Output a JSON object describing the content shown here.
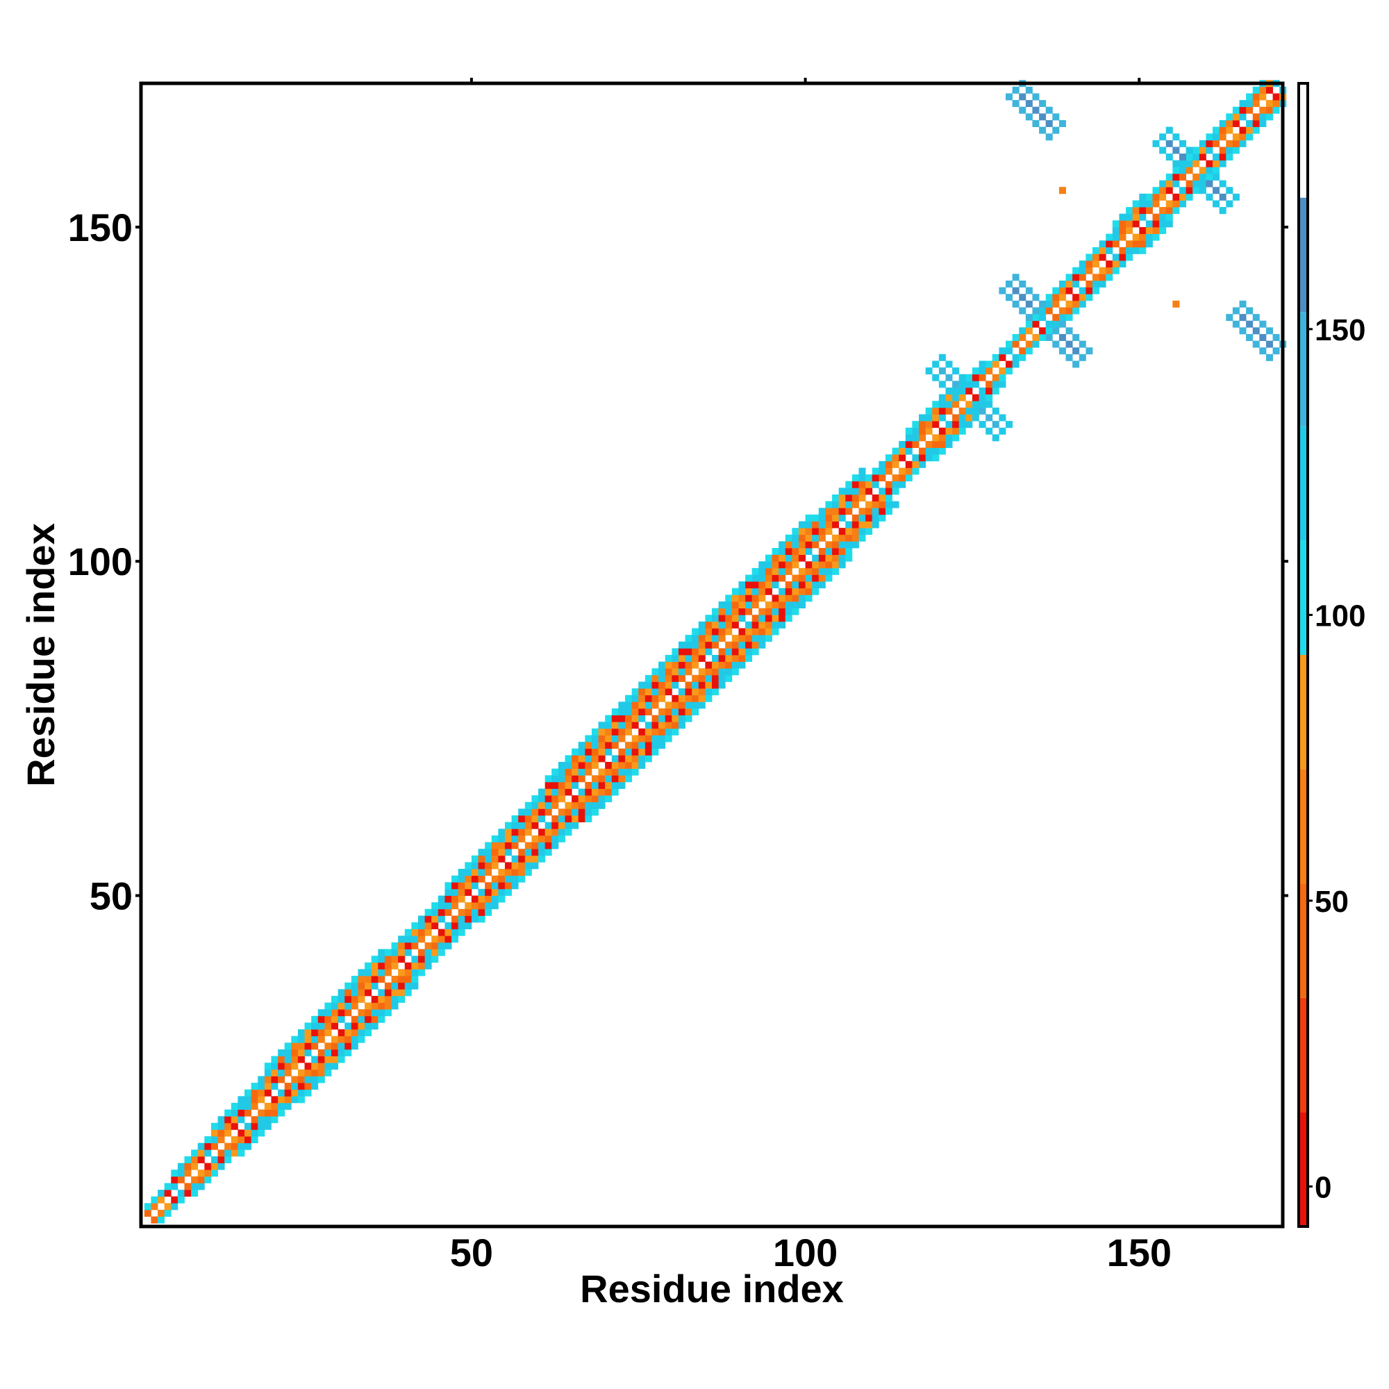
{
  "chart_data": {
    "type": "heatmap",
    "title": "",
    "xlabel": "Residue index",
    "ylabel": "Residue index",
    "n_residues": 171,
    "xlim": [
      1,
      171
    ],
    "ylim": [
      1,
      171
    ],
    "x_ticks": [
      {
        "value": 50,
        "label": "50"
      },
      {
        "value": 100,
        "label": "100"
      },
      {
        "value": 150,
        "label": "150"
      }
    ],
    "y_ticks": [
      {
        "value": 50,
        "label": "50"
      },
      {
        "value": 100,
        "label": "100"
      },
      {
        "value": 150,
        "label": "150"
      }
    ],
    "colorbar": {
      "range": [
        -7,
        193
      ],
      "ticks": [
        {
          "value": 0,
          "label": "0"
        },
        {
          "value": 50,
          "label": "50"
        },
        {
          "value": 100,
          "label": "100"
        },
        {
          "value": 150,
          "label": "150"
        }
      ],
      "bins": [
        {
          "from": -7,
          "to": 13,
          "color": "#e8120a"
        },
        {
          "from": 13,
          "to": 33,
          "color": "#f23c0c"
        },
        {
          "from": 33,
          "to": 53,
          "color": "#f56a10"
        },
        {
          "from": 53,
          "to": 73,
          "color": "#f77f15"
        },
        {
          "from": 73,
          "to": 93,
          "color": "#f99a1c"
        },
        {
          "from": 93,
          "to": 113,
          "color": "#20dceb"
        },
        {
          "from": 113,
          "to": 133,
          "color": "#22c9e6"
        },
        {
          "from": 133,
          "to": 153,
          "color": "#3fb4da"
        },
        {
          "from": 153,
          "to": 173,
          "color": "#4d8fc4"
        },
        {
          "from": 173,
          "to": 193,
          "color": "#ffffff"
        }
      ]
    },
    "band": {
      "pattern": [
        "#f56a10",
        "#e8120a",
        "#f77f15",
        "#22c9e6",
        "#f99a1c"
      ],
      "segments": [
        {
          "from": 1,
          "to": 4,
          "halfwidth": 2
        },
        {
          "from": 4,
          "to": 10,
          "halfwidth": 3
        },
        {
          "from": 10,
          "to": 18,
          "halfwidth": 4
        },
        {
          "from": 18,
          "to": 36,
          "halfwidth": 5
        },
        {
          "from": 36,
          "to": 45,
          "halfwidth": 4
        },
        {
          "from": 45,
          "to": 60,
          "halfwidth": 5
        },
        {
          "from": 60,
          "to": 100,
          "halfwidth": 6
        },
        {
          "from": 100,
          "to": 108,
          "halfwidth": 5
        },
        {
          "from": 108,
          "to": 114,
          "halfwidth": 3
        },
        {
          "from": 114,
          "to": 122,
          "halfwidth": 4
        },
        {
          "from": 122,
          "to": 126,
          "halfwidth": 3
        },
        {
          "from": 126,
          "to": 135,
          "halfwidth": 2
        },
        {
          "from": 135,
          "to": 145,
          "halfwidth": 3
        },
        {
          "from": 145,
          "to": 150,
          "halfwidth": 4
        },
        {
          "from": 150,
          "to": 160,
          "halfwidth": 3
        },
        {
          "from": 160,
          "to": 171,
          "halfwidth": 3
        }
      ]
    },
    "off_diagonal_blobs": [
      {
        "center": [
          134,
          167
        ],
        "length": 7,
        "halfwidth": 1,
        "color": "#4d8fc4",
        "edge_color": "#3fb4da"
      },
      {
        "center": [
          167,
          134
        ],
        "length": 7,
        "halfwidth": 1,
        "color": "#4d8fc4",
        "edge_color": "#3fb4da"
      },
      {
        "center": [
          155,
          161
        ],
        "length": 5,
        "halfwidth": 1,
        "color": "#4d8fc4",
        "edge_color": "#22c9e6"
      },
      {
        "center": [
          161,
          155
        ],
        "length": 5,
        "halfwidth": 1,
        "color": "#4d8fc4",
        "edge_color": "#22c9e6"
      },
      {
        "center": [
          132,
          139
        ],
        "length": 5,
        "halfwidth": 1,
        "color": "#4d8fc4",
        "edge_color": "#3fb4da"
      },
      {
        "center": [
          139,
          132
        ],
        "length": 5,
        "halfwidth": 1,
        "color": "#4d8fc4",
        "edge_color": "#3fb4da"
      },
      {
        "center": [
          121,
          127
        ],
        "length": 4,
        "halfwidth": 1,
        "color": "#3fb4da",
        "edge_color": "#22c9e6"
      },
      {
        "center": [
          127,
          121
        ],
        "length": 4,
        "halfwidth": 1,
        "color": "#3fb4da",
        "edge_color": "#22c9e6"
      }
    ],
    "isolated_cells": [
      {
        "x": 138,
        "y": 155,
        "color": "#f77f15"
      },
      {
        "x": 155,
        "y": 138,
        "color": "#f77f15"
      }
    ],
    "grid": false,
    "legend": "colorbar-right"
  }
}
